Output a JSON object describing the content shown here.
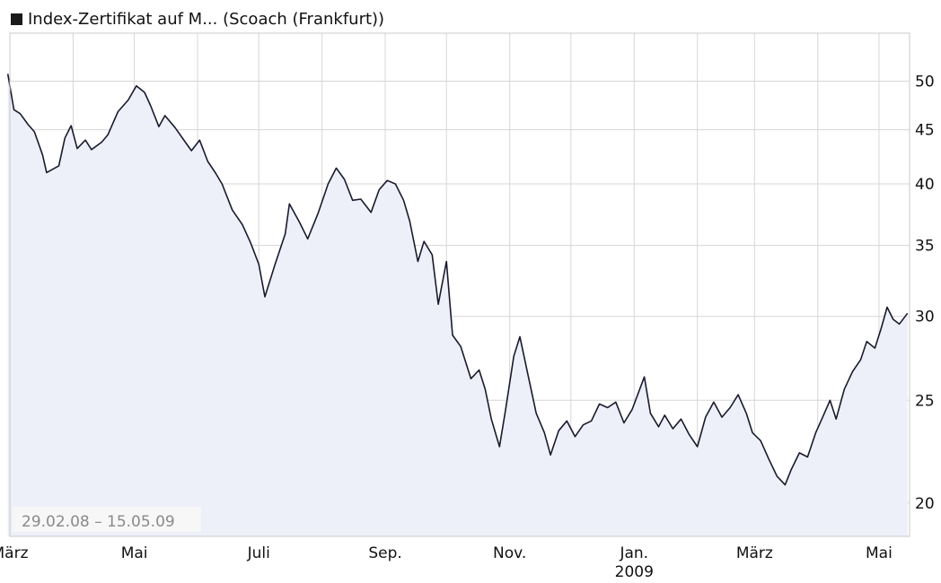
{
  "chart_data": {
    "type": "line",
    "title": "Index-Zertifikat auf M... (Scoach (Frankfurt))",
    "date_range_label": "29.02.08 – 15.05.09",
    "y_scale": "log",
    "ylim": [
      18.6,
      55.5
    ],
    "xlim": [
      "2008-03-01",
      "2009-05-16"
    ],
    "grid": true,
    "legend_position": "top-left",
    "line_color": "#1a1a2e",
    "fill_color": "#eef0f9",
    "y_ticks": [
      20,
      25,
      30,
      35,
      40,
      45,
      50
    ],
    "x_ticks": [
      {
        "date": "2008-03-01",
        "label": "März"
      },
      {
        "date": "2008-05-01",
        "label": "Mai"
      },
      {
        "date": "2008-07-01",
        "label": "Juli"
      },
      {
        "date": "2008-09-01",
        "label": "Sep."
      },
      {
        "date": "2008-11-01",
        "label": "Nov."
      },
      {
        "date": "2009-01-01",
        "label": "Jan.",
        "sublabel": "2009"
      },
      {
        "date": "2009-03-01",
        "label": "März"
      },
      {
        "date": "2009-05-01",
        "label": "Mai"
      }
    ],
    "x_gridlines": [
      "2008-04-01",
      "2008-05-01",
      "2008-06-01",
      "2008-07-01",
      "2008-08-01",
      "2008-09-01",
      "2008-10-01",
      "2008-11-01",
      "2008-12-01",
      "2009-01-01",
      "2009-02-01",
      "2009-03-01",
      "2009-04-01",
      "2009-05-01"
    ],
    "series": [
      {
        "values": [
          [
            "2008-02-29",
            50.8
          ],
          [
            "2008-03-03",
            47.0
          ],
          [
            "2008-03-06",
            46.6
          ],
          [
            "2008-03-10",
            45.5
          ],
          [
            "2008-03-13",
            44.8
          ],
          [
            "2008-03-17",
            42.6
          ],
          [
            "2008-03-19",
            41.0
          ],
          [
            "2008-03-25",
            41.6
          ],
          [
            "2008-03-28",
            44.2
          ],
          [
            "2008-03-31",
            45.4
          ],
          [
            "2008-04-03",
            43.2
          ],
          [
            "2008-04-07",
            44.0
          ],
          [
            "2008-04-10",
            43.1
          ],
          [
            "2008-04-15",
            43.8
          ],
          [
            "2008-04-18",
            44.5
          ],
          [
            "2008-04-23",
            46.8
          ],
          [
            "2008-04-28",
            48.0
          ],
          [
            "2008-05-02",
            49.5
          ],
          [
            "2008-05-06",
            48.8
          ],
          [
            "2008-05-09",
            47.4
          ],
          [
            "2008-05-13",
            45.3
          ],
          [
            "2008-05-16",
            46.4
          ],
          [
            "2008-05-21",
            45.2
          ],
          [
            "2008-05-26",
            43.8
          ],
          [
            "2008-05-29",
            43.0
          ],
          [
            "2008-06-02",
            44.0
          ],
          [
            "2008-06-06",
            42.0
          ],
          [
            "2008-06-10",
            40.9
          ],
          [
            "2008-06-13",
            40.0
          ],
          [
            "2008-06-18",
            37.8
          ],
          [
            "2008-06-23",
            36.6
          ],
          [
            "2008-06-27",
            35.2
          ],
          [
            "2008-07-01",
            33.6
          ],
          [
            "2008-07-04",
            31.3
          ],
          [
            "2008-07-09",
            33.6
          ],
          [
            "2008-07-14",
            35.9
          ],
          [
            "2008-07-16",
            38.3
          ],
          [
            "2008-07-21",
            36.8
          ],
          [
            "2008-07-25",
            35.5
          ],
          [
            "2008-07-30",
            37.5
          ],
          [
            "2008-08-04",
            40.0
          ],
          [
            "2008-08-08",
            41.4
          ],
          [
            "2008-08-12",
            40.4
          ],
          [
            "2008-08-16",
            38.6
          ],
          [
            "2008-08-20",
            38.7
          ],
          [
            "2008-08-25",
            37.6
          ],
          [
            "2008-08-29",
            39.5
          ],
          [
            "2008-09-02",
            40.3
          ],
          [
            "2008-09-06",
            40.0
          ],
          [
            "2008-09-10",
            38.6
          ],
          [
            "2008-09-13",
            36.9
          ],
          [
            "2008-09-17",
            33.8
          ],
          [
            "2008-09-20",
            35.3
          ],
          [
            "2008-09-24",
            34.3
          ],
          [
            "2008-09-27",
            30.8
          ],
          [
            "2008-10-01",
            33.8
          ],
          [
            "2008-10-04",
            28.8
          ],
          [
            "2008-10-08",
            28.1
          ],
          [
            "2008-10-13",
            26.2
          ],
          [
            "2008-10-17",
            26.7
          ],
          [
            "2008-10-20",
            25.6
          ],
          [
            "2008-10-23",
            24.0
          ],
          [
            "2008-10-27",
            22.6
          ],
          [
            "2008-10-30",
            24.5
          ],
          [
            "2008-11-03",
            27.5
          ],
          [
            "2008-11-06",
            28.7
          ],
          [
            "2008-11-10",
            26.4
          ],
          [
            "2008-11-14",
            24.3
          ],
          [
            "2008-11-18",
            23.3
          ],
          [
            "2008-11-21",
            22.2
          ],
          [
            "2008-11-25",
            23.4
          ],
          [
            "2008-11-29",
            23.9
          ],
          [
            "2008-12-03",
            23.1
          ],
          [
            "2008-12-07",
            23.7
          ],
          [
            "2008-12-11",
            23.9
          ],
          [
            "2008-12-15",
            24.8
          ],
          [
            "2008-12-19",
            24.6
          ],
          [
            "2008-12-23",
            24.9
          ],
          [
            "2008-12-27",
            23.8
          ],
          [
            "2008-12-31",
            24.5
          ],
          [
            "2009-01-06",
            26.3
          ],
          [
            "2009-01-09",
            24.3
          ],
          [
            "2009-01-13",
            23.6
          ],
          [
            "2009-01-16",
            24.2
          ],
          [
            "2009-01-20",
            23.5
          ],
          [
            "2009-01-24",
            24.0
          ],
          [
            "2009-01-28",
            23.2
          ],
          [
            "2009-02-01",
            22.6
          ],
          [
            "2009-02-05",
            24.1
          ],
          [
            "2009-02-09",
            24.9
          ],
          [
            "2009-02-13",
            24.1
          ],
          [
            "2009-02-17",
            24.6
          ],
          [
            "2009-02-21",
            25.3
          ],
          [
            "2009-02-25",
            24.3
          ],
          [
            "2009-02-28",
            23.3
          ],
          [
            "2009-03-04",
            22.9
          ],
          [
            "2009-03-08",
            22.0
          ],
          [
            "2009-03-12",
            21.2
          ],
          [
            "2009-03-16",
            20.8
          ],
          [
            "2009-03-19",
            21.5
          ],
          [
            "2009-03-23",
            22.3
          ],
          [
            "2009-03-27",
            22.1
          ],
          [
            "2009-03-31",
            23.3
          ],
          [
            "2009-04-03",
            24.0
          ],
          [
            "2009-04-07",
            25.0
          ],
          [
            "2009-04-10",
            24.0
          ],
          [
            "2009-04-14",
            25.6
          ],
          [
            "2009-04-18",
            26.6
          ],
          [
            "2009-04-22",
            27.3
          ],
          [
            "2009-04-25",
            28.4
          ],
          [
            "2009-04-29",
            28.0
          ],
          [
            "2009-05-02",
            29.2
          ],
          [
            "2009-05-05",
            30.6
          ],
          [
            "2009-05-08",
            29.8
          ],
          [
            "2009-05-11",
            29.5
          ],
          [
            "2009-05-15",
            30.2
          ]
        ]
      }
    ]
  }
}
